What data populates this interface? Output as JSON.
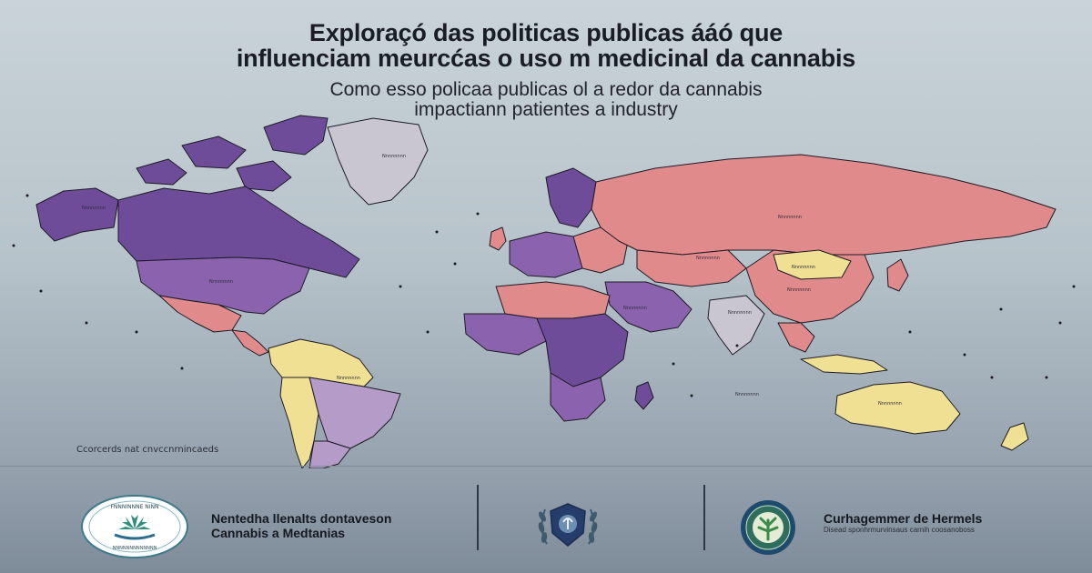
{
  "header": {
    "title_line1": "Exploraçó das politicas publicas ááó que",
    "title_line2": "influenciam meurcćas o uso m medicinal da cannabis",
    "subtitle_line1": "Como esso policaa publicas ol a redor da cannabis",
    "subtitle_line2": "impactiann patientes a industry"
  },
  "map": {
    "caption": "Ccorcerds nat cnvccnrnincaeds",
    "colors": {
      "purple": "#6e4c9a",
      "purple_light": "#8a62ad",
      "salmon": "#e08a8c",
      "yellow": "#efe093",
      "grey": "#c9c6d2",
      "lavender": "#b59bc7",
      "outline": "#1d1b24"
    },
    "labels": [
      "Nnnnnnnn",
      "Nnnnnnnn",
      "Nnnnnnnn",
      "Nnnnnnnn",
      "Nnnnnnnn",
      "Nnnnnnnn",
      "Nnnnnnnn",
      "Nnnnnnnn",
      "Nnnnnnnn",
      "Nnnnnnnn",
      "Nnnnnnnn",
      "Nnnnnnnn"
    ]
  },
  "footer": {
    "left": {
      "badge_text_top": "FNNNINNNE NINN",
      "badge_text_bottom": "NNNNNNNNNNNNN",
      "name_line1": "Nentedha llenalts dontaveson",
      "name_line2": "Cannabis a Medtanias",
      "icon": "cannabis-leaf-icon"
    },
    "center": {
      "icon": "laurel-emblem-icon"
    },
    "right": {
      "name_line1": "Curhagemmer de Hermels",
      "name_line2": "Disead sponhrmurvinsaus carnih coosanoboss",
      "icon": "globe-leaf-icon"
    }
  }
}
